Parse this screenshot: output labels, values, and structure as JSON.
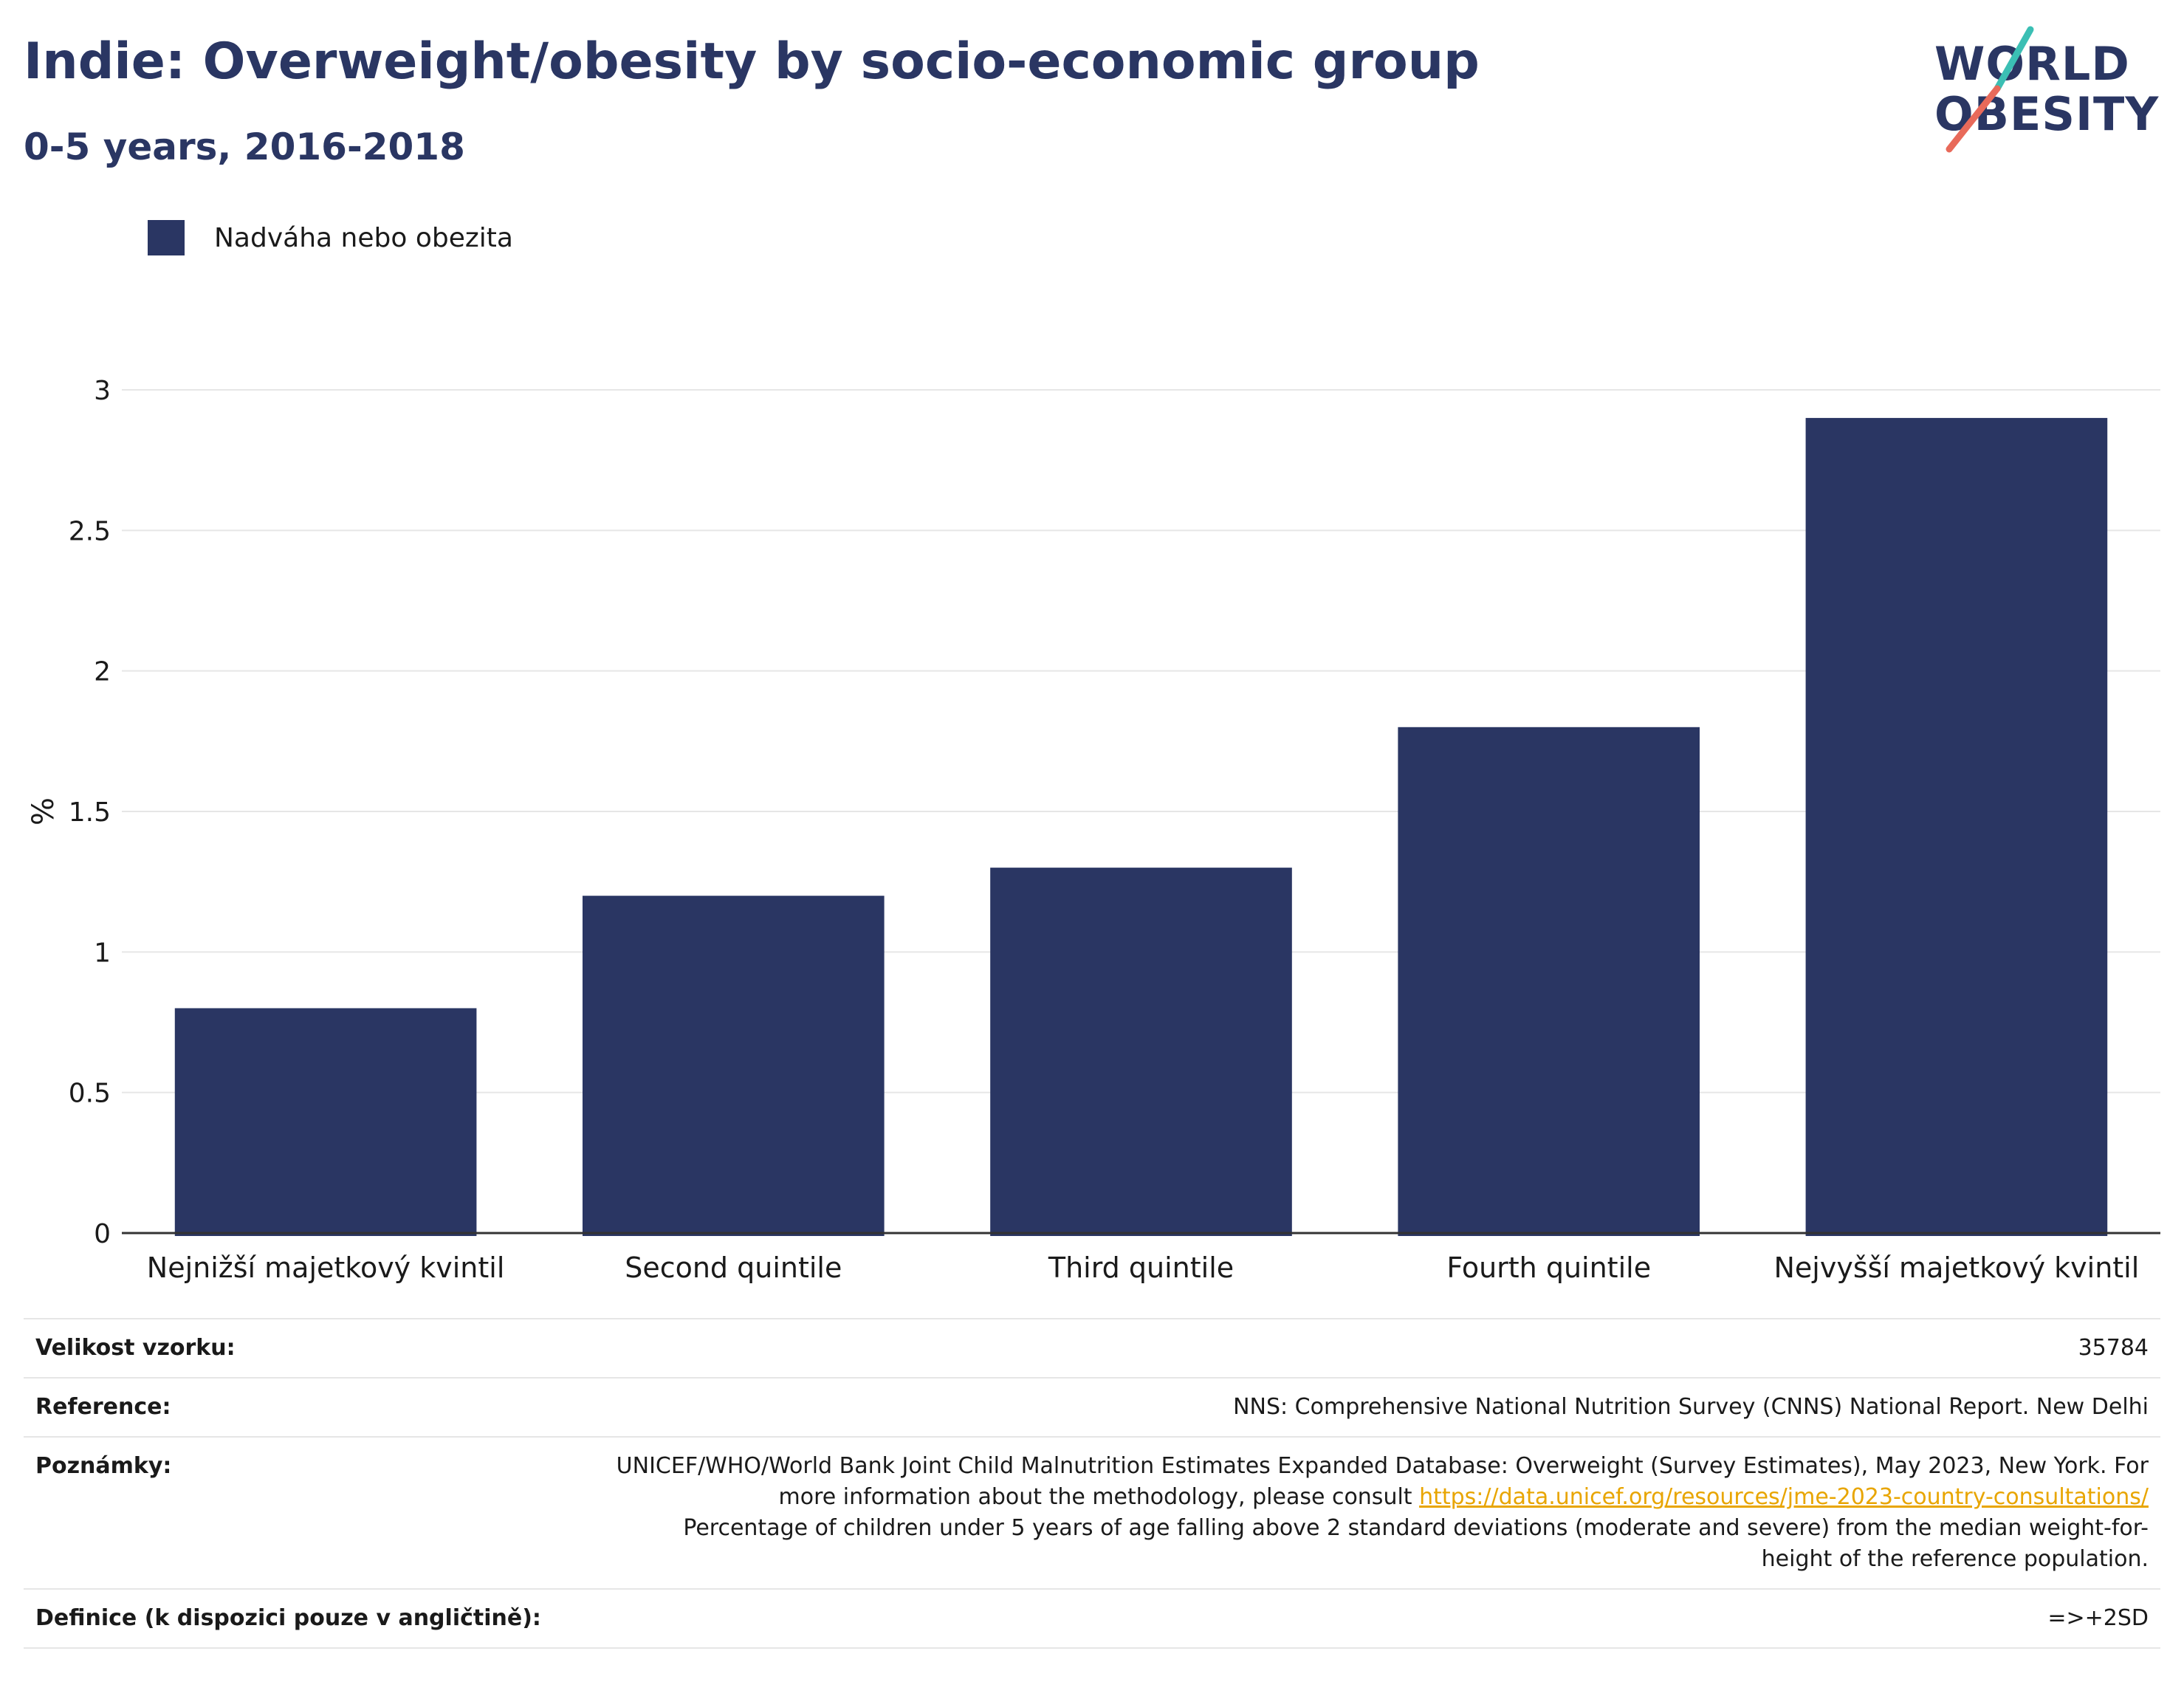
{
  "header": {
    "title": "Indie: Overweight/obesity by socio-economic group",
    "subtitle": "0-5 years, 2016-2018"
  },
  "logo": {
    "line1": "WORLD",
    "line2": "OBESITY"
  },
  "colors": {
    "bar": "#2a3663",
    "grid": "#e6e6e6",
    "axis": "#333333",
    "logo_teal": "#3bbfb4",
    "logo_coral": "#e86a5a"
  },
  "chart_data": {
    "type": "bar",
    "title": "Indie: Overweight/obesity by socio-economic group",
    "subtitle": "0-5 years, 2016-2018",
    "categories": [
      "Nejnižší majetkový kvintil",
      "Second quintile",
      "Third quintile",
      "Fourth quintile",
      "Nejvyšší majetkový kvintil"
    ],
    "series": [
      {
        "name": "Nadváha nebo obezita",
        "values": [
          0.8,
          1.2,
          1.3,
          1.8,
          2.9
        ]
      }
    ],
    "xlabel": "",
    "ylabel": "%",
    "ylim": [
      0,
      3
    ],
    "yticks": [
      "0",
      "0.5",
      "1",
      "1.5",
      "2",
      "2.5",
      "3"
    ],
    "grid": true,
    "legend": "top-left"
  },
  "footer": {
    "sample_label": "Velikost vzorku:",
    "sample_value": "35784",
    "reference_label": "Reference:",
    "reference_value": "NNS: Comprehensive National Nutrition Survey (CNNS) National Report. New Delhi",
    "notes_label": "Poznámky:",
    "notes_text_1": "UNICEF/WHO/World Bank Joint Child Malnutrition Estimates Expanded Database: Overweight (Survey Estimates), May 2023, New York. For more information about the methodology, please consult ",
    "notes_link": "https://data.unicef.org/resources/jme-2023-country-consultations/",
    "notes_text_2": "Percentage of children under 5 years of age falling above 2 standard deviations (moderate and severe) from the median weight-for-height of the reference population.",
    "definition_label": "Definice (k dispozici pouze v angličtině):",
    "definition_value": "=>+2SD"
  }
}
